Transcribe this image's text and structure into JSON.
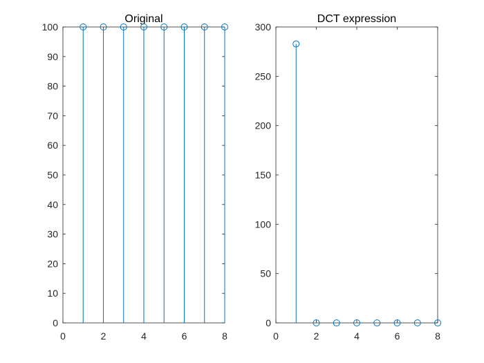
{
  "chart_data": [
    {
      "type": "stem",
      "title": "Original",
      "xlim": [
        0,
        8
      ],
      "ylim": [
        0,
        100
      ],
      "xticks": [
        0,
        2,
        4,
        6,
        8
      ],
      "yticks": [
        0,
        10,
        20,
        30,
        40,
        50,
        60,
        70,
        80,
        90,
        100
      ],
      "x": [
        1,
        2,
        3,
        4,
        5,
        6,
        7,
        8
      ],
      "values": [
        100,
        100,
        100,
        100,
        100,
        100,
        100,
        100
      ],
      "grid": false,
      "color": "#0072bd"
    },
    {
      "type": "stem",
      "title": "DCT expression",
      "xlim": [
        0,
        8
      ],
      "ylim": [
        0,
        300
      ],
      "xticks": [
        0,
        2,
        4,
        6,
        8
      ],
      "yticks": [
        0,
        50,
        100,
        150,
        200,
        250,
        300
      ],
      "x": [
        1,
        2,
        3,
        4,
        5,
        6,
        7,
        8
      ],
      "values": [
        282.8,
        0,
        0,
        0,
        0,
        0,
        0,
        0
      ],
      "grid": false,
      "color": "#0072bd"
    }
  ]
}
